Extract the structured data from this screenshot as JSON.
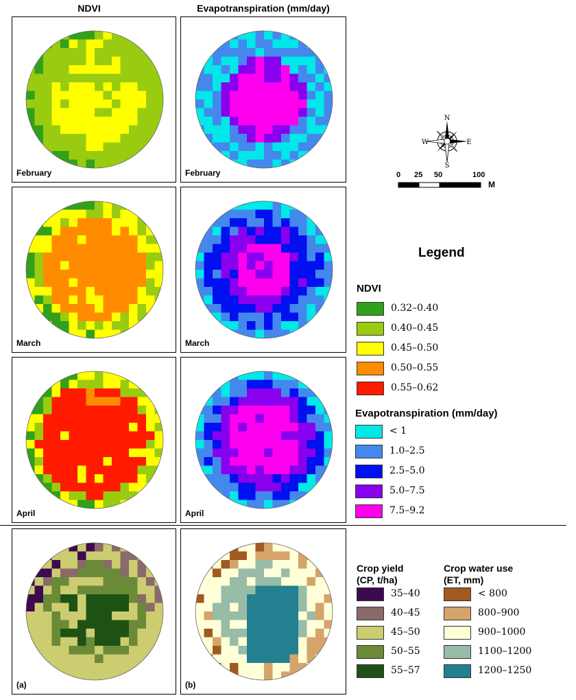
{
  "column_titles": {
    "ndvi": "NDVI",
    "et": "Evapotranspiration (mm/day)"
  },
  "months": [
    "February",
    "March",
    "April"
  ],
  "panel_tags": {
    "a": "(a)",
    "b": "(b)"
  },
  "compass": {
    "n": "N",
    "s": "S",
    "e": "E",
    "w": "W"
  },
  "scale_bar": {
    "ticks": [
      "0",
      "25",
      "50",
      "100"
    ],
    "unit": "M"
  },
  "legend": {
    "title": "Legend",
    "ndvi": {
      "title": "NDVI",
      "classes": [
        {
          "label": "0.32–0.40",
          "color": "#33a01c"
        },
        {
          "label": "0.40–0.45",
          "color": "#99cc11"
        },
        {
          "label": "0.45–0.50",
          "color": "#ffff00"
        },
        {
          "label": "0.50–0.55",
          "color": "#ff8c00"
        },
        {
          "label": "0.55–0.62",
          "color": "#ff1a00"
        }
      ]
    },
    "et": {
      "title": "Evapotranspiration (mm/day)",
      "classes": [
        {
          "label": "< 1",
          "color": "#00e8e8"
        },
        {
          "label": "1.0–2.5",
          "color": "#4488ee"
        },
        {
          "label": "2.5–5.0",
          "color": "#0010ee"
        },
        {
          "label": "5.0–7.5",
          "color": "#8800ee"
        },
        {
          "label": "7.5–9.2",
          "color": "#ff00ee"
        }
      ]
    },
    "crop_yield": {
      "title_line1": "Crop yield",
      "title_line2": "(CP, t/ha)",
      "classes": [
        {
          "label": "35–40",
          "color": "#3d0a50"
        },
        {
          "label": "40–45",
          "color": "#8a6a6a"
        },
        {
          "label": "45–50",
          "color": "#cccc70"
        },
        {
          "label": "50–55",
          "color": "#6b8a38"
        },
        {
          "label": "55–57",
          "color": "#1e5214"
        }
      ]
    },
    "water_use": {
      "title_line1": "Crop water use",
      "title_line2": "(ET, mm)",
      "classes": [
        {
          "label": "< 800",
          "color": "#a05a20"
        },
        {
          "label": "800–900",
          "color": "#d4a46a"
        },
        {
          "label": "900–1000",
          "color": "#ffffd8"
        },
        {
          "label": "1100–1200",
          "color": "#98bca8"
        },
        {
          "label": "1200–1250",
          "color": "#228090"
        }
      ]
    }
  }
}
